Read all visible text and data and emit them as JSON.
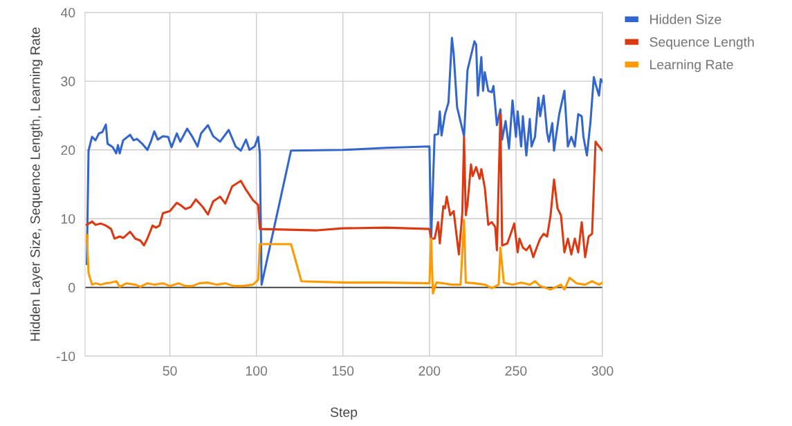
{
  "chart_data": {
    "type": "line",
    "xlabel": "Step",
    "ylabel": "Hidden Layer Size, Sequence Length, Learning Rate",
    "xlim": [
      1,
      300
    ],
    "ylim": [
      -10,
      40
    ],
    "xticks": [
      50,
      100,
      150,
      200,
      250,
      300
    ],
    "yticks": [
      -10,
      0,
      10,
      20,
      30,
      40
    ],
    "grid": true,
    "legend": "top right",
    "marker": "none",
    "line_style": "solid",
    "ref_lines": [
      {
        "axis": "y",
        "value": 0,
        "color": "#333333"
      }
    ],
    "series": [
      {
        "name": "Hidden Size",
        "color": "#3366cc",
        "x": [
          2,
          3,
          5,
          7,
          9,
          11,
          13,
          14,
          17,
          19,
          20,
          21,
          23,
          27,
          29,
          31,
          34,
          37,
          39,
          41,
          43,
          46,
          49,
          51,
          54,
          56,
          60,
          63,
          66,
          68,
          72,
          75,
          79,
          84,
          86,
          88,
          91,
          94,
          96,
          99,
          101,
          102,
          103,
          120,
          150,
          175,
          200,
          201,
          203,
          205,
          206,
          207,
          209,
          211,
          213,
          214,
          216,
          220,
          222,
          226,
          227,
          228,
          230,
          231,
          232,
          234,
          236,
          237,
          239,
          241,
          242,
          244,
          246,
          248,
          250,
          251,
          253,
          254,
          256,
          258,
          259,
          261,
          263,
          264,
          266,
          268,
          269,
          271,
          272,
          275,
          278,
          280,
          282,
          284,
          286,
          288,
          289,
          291,
          293,
          295,
          296,
          298,
          299,
          300
        ],
        "values": [
          3.4,
          19.9,
          21.9,
          21.4,
          22.4,
          22.6,
          23.7,
          20.9,
          20.4,
          19.5,
          20.7,
          19.5,
          21.4,
          22.2,
          21.4,
          21.6,
          20.9,
          20.0,
          21.2,
          22.7,
          21.5,
          22.0,
          21.9,
          20.4,
          22.4,
          21.2,
          23.1,
          21.9,
          20.5,
          22.4,
          23.6,
          22.0,
          21.2,
          22.9,
          21.7,
          20.5,
          19.9,
          21.5,
          20.0,
          20.5,
          21.9,
          19.5,
          0.4,
          19.9,
          20.0,
          20.3,
          20.5,
          7.1,
          22.2,
          22.3,
          25.6,
          22.1,
          25.2,
          26.9,
          36.3,
          34.0,
          26.2,
          22.0,
          31.6,
          35.8,
          35.3,
          27.9,
          33.5,
          28.6,
          31.3,
          28.6,
          28.4,
          29.3,
          23.6,
          25.9,
          21.5,
          24.2,
          20.2,
          27.2,
          21.9,
          25.6,
          20.5,
          24.9,
          19.2,
          24.5,
          20.5,
          21.9,
          27.6,
          24.9,
          27.9,
          22.5,
          21.2,
          23.9,
          19.9,
          25.2,
          28.6,
          20.5,
          21.9,
          20.5,
          25.2,
          24.9,
          21.9,
          19.2,
          23.9,
          30.6,
          29.6,
          27.9,
          30.3,
          29.9
        ]
      },
      {
        "name": "Sequence Length",
        "color": "#dc3912",
        "x": [
          2,
          5,
          7,
          10,
          13,
          16,
          18,
          21,
          23,
          27,
          30,
          33,
          35,
          37,
          40,
          42,
          44,
          46,
          50,
          54,
          56,
          59,
          62,
          65,
          69,
          72,
          75,
          79,
          82,
          86,
          91,
          94,
          98,
          101,
          102,
          135,
          150,
          175,
          200,
          201,
          203,
          205,
          206,
          208,
          209,
          210,
          212,
          214,
          217,
          219,
          220,
          221,
          222,
          224,
          225,
          227,
          229,
          230,
          232,
          234,
          236,
          238,
          239,
          241,
          242,
          245,
          247,
          249,
          251,
          252,
          254,
          256,
          258,
          260,
          262,
          264,
          266,
          268,
          270,
          272,
          274,
          276,
          278,
          280,
          282,
          284,
          286,
          288,
          290,
          292,
          294,
          296,
          298,
          300
        ],
        "values": [
          9.1,
          9.6,
          9.1,
          9.3,
          9.0,
          8.5,
          7.1,
          7.4,
          7.2,
          8.1,
          7.1,
          6.8,
          6.1,
          7.1,
          9.0,
          8.7,
          9.0,
          10.8,
          11.1,
          12.3,
          12.0,
          11.4,
          11.7,
          12.8,
          11.7,
          10.6,
          12.5,
          13.2,
          12.2,
          14.7,
          15.5,
          14.2,
          12.7,
          12.0,
          8.5,
          8.3,
          8.6,
          8.7,
          8.5,
          7.1,
          7.1,
          9.5,
          6.4,
          11.8,
          11.5,
          13.2,
          10.5,
          11.1,
          4.8,
          10.8,
          21.9,
          10.5,
          12.1,
          17.9,
          16.2,
          17.5,
          15.8,
          17.2,
          14.5,
          9.1,
          9.5,
          8.8,
          5.4,
          25.2,
          6.1,
          6.4,
          7.8,
          9.3,
          5.1,
          7.1,
          5.8,
          5.4,
          6.1,
          4.4,
          5.8,
          7.1,
          7.8,
          7.4,
          10.5,
          15.7,
          11.5,
          10.5,
          5.1,
          7.1,
          4.8,
          7.1,
          5.1,
          9.5,
          4.4,
          7.4,
          7.8,
          21.2,
          20.5,
          19.9
        ]
      },
      {
        "name": "Learning Rate",
        "color": "#ff9900",
        "x": [
          2,
          3,
          5,
          7,
          10,
          13,
          16,
          19,
          21,
          25,
          30,
          33,
          37,
          41,
          46,
          50,
          55,
          59,
          63,
          67,
          72,
          77,
          82,
          87,
          92,
          98,
          101,
          102,
          120,
          126,
          152,
          175,
          200,
          201,
          202,
          204,
          208,
          213,
          218,
          220,
          221,
          226,
          232,
          236,
          240,
          241,
          243,
          248,
          253,
          258,
          261,
          264,
          270,
          276,
          278,
          281,
          285,
          290,
          294,
          298,
          300
        ],
        "values": [
          7.6,
          2.1,
          0.4,
          0.6,
          0.4,
          0.6,
          0.7,
          0.9,
          0.1,
          0.6,
          0.4,
          0.1,
          0.6,
          0.4,
          0.6,
          0.2,
          0.6,
          0.2,
          0.2,
          0.6,
          0.7,
          0.4,
          0.6,
          0.2,
          0.2,
          0.4,
          1.1,
          6.3,
          6.3,
          0.9,
          0.7,
          0.7,
          0.6,
          7.1,
          -0.9,
          0.7,
          0.6,
          0.4,
          0.4,
          9.8,
          0.7,
          0.6,
          0.4,
          -0.1,
          0.4,
          5.8,
          0.7,
          0.4,
          0.7,
          0.4,
          0.9,
          0.2,
          -0.3,
          0.4,
          -0.3,
          1.4,
          0.6,
          0.4,
          0.9,
          0.4,
          0.7
        ]
      }
    ]
  }
}
